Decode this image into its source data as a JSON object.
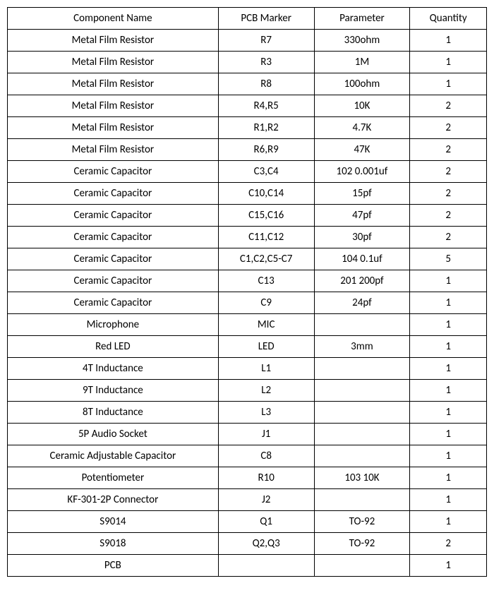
{
  "table": {
    "columns": [
      "Component Name",
      "PCB Marker",
      "Parameter",
      "Quantity"
    ],
    "col_widths_pct": [
      44,
      20,
      20,
      16
    ],
    "font_family": "Calibri",
    "font_size_pt": 11,
    "border_color": "#000000",
    "background_color": "#ffffff",
    "text_color": "#000000",
    "rows": [
      [
        "Metal Film Resistor",
        "R7",
        "330ohm",
        "1"
      ],
      [
        "Metal Film Resistor",
        "R3",
        "1M",
        "1"
      ],
      [
        "Metal Film Resistor",
        "R8",
        "100ohm",
        "1"
      ],
      [
        "Metal Film Resistor",
        "R4,R5",
        "10K",
        "2"
      ],
      [
        "Metal Film Resistor",
        "R1,R2",
        "4.7K",
        "2"
      ],
      [
        "Metal Film Resistor",
        "R6,R9",
        "47K",
        "2"
      ],
      [
        "Ceramic Capacitor",
        "C3,C4",
        "102 0.001uf",
        "2"
      ],
      [
        "Ceramic Capacitor",
        "C10,C14",
        "15pf",
        "2"
      ],
      [
        "Ceramic Capacitor",
        "C15,C16",
        "47pf",
        "2"
      ],
      [
        "Ceramic Capacitor",
        "C11,C12",
        "30pf",
        "2"
      ],
      [
        "Ceramic Capacitor",
        "C1,C2,C5-C7",
        "104 0.1uf",
        "5"
      ],
      [
        "Ceramic Capacitor",
        "C13",
        "201 200pf",
        "1"
      ],
      [
        "Ceramic Capacitor",
        "C9",
        "24pf",
        "1"
      ],
      [
        "Microphone",
        "MIC",
        "",
        "1"
      ],
      [
        "Red LED",
        "LED",
        "3mm",
        "1"
      ],
      [
        "4T Inductance",
        "L1",
        "",
        "1"
      ],
      [
        "9T Inductance",
        "L2",
        "",
        "1"
      ],
      [
        "8T Inductance",
        "L3",
        "",
        "1"
      ],
      [
        "5P Audio Socket",
        "J1",
        "",
        "1"
      ],
      [
        "Ceramic Adjustable Capacitor",
        "C8",
        "",
        "1"
      ],
      [
        "Potentiometer",
        "R10",
        "103 10K",
        "1"
      ],
      [
        "KF-301-2P Connector",
        "J2",
        "",
        "1"
      ],
      [
        "S9014",
        "Q1",
        "TO-92",
        "1"
      ],
      [
        "S9018",
        "Q2,Q3",
        "TO-92",
        "2"
      ],
      [
        "PCB",
        "",
        "",
        "1"
      ]
    ]
  }
}
